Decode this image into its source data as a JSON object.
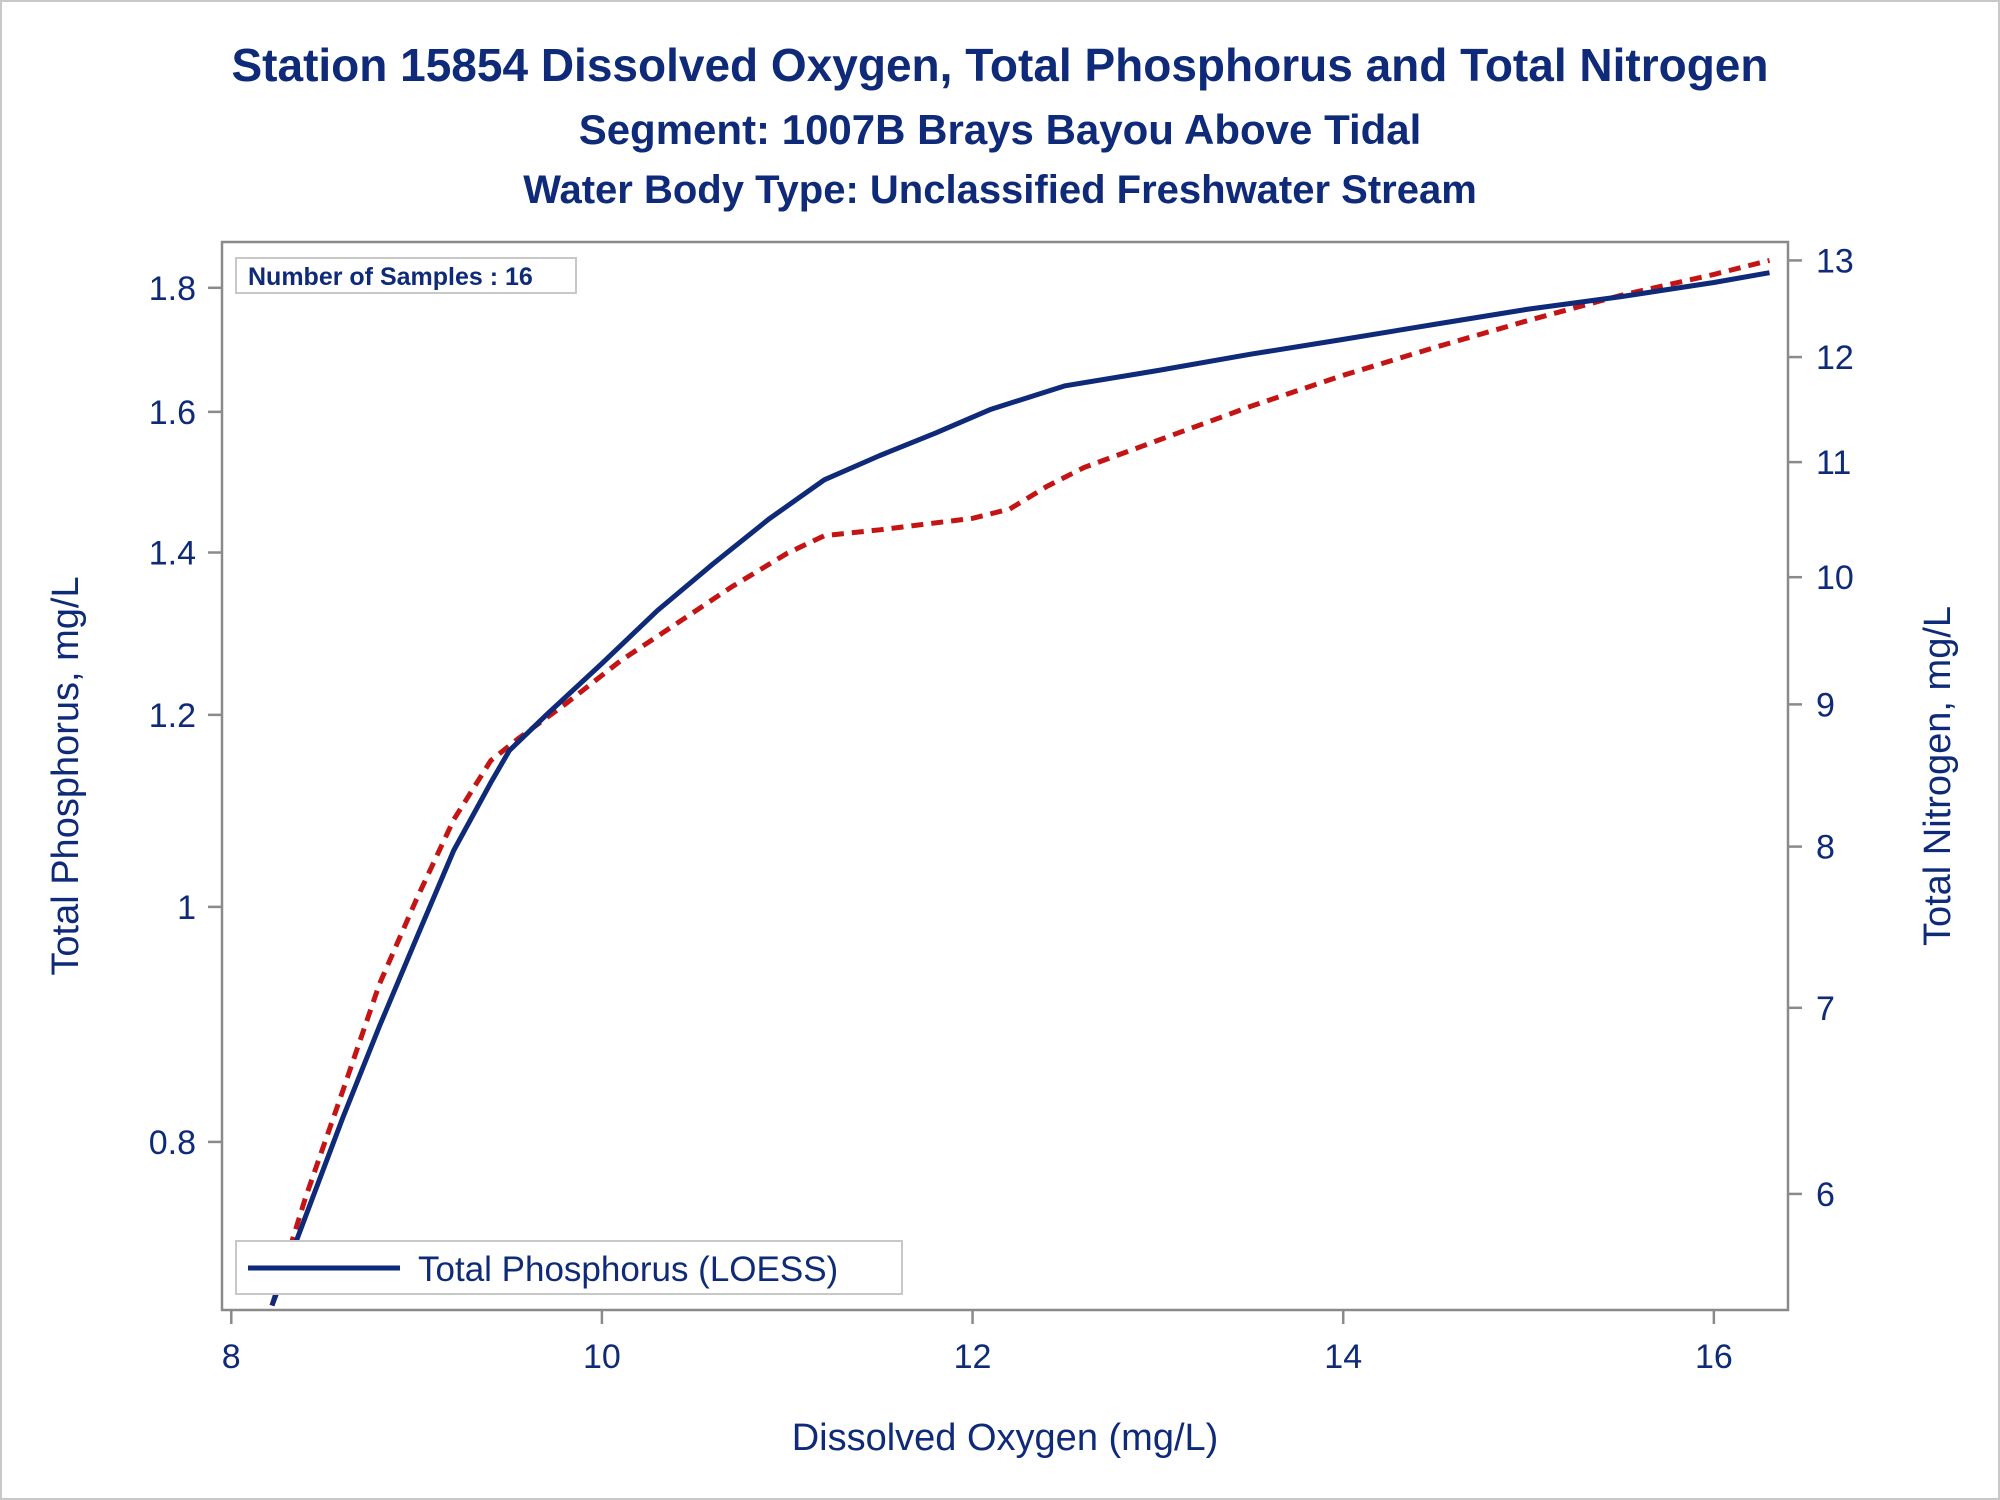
{
  "chart_data": {
    "type": "line",
    "title": "Station 15854  Dissolved Oxygen, Total Phosphorus and Total Nitrogen",
    "subtitle": "Segment: 1007B  Brays Bayou Above Tidal",
    "subtitle2": "Water Body Type: Unclassified Freshwater Stream",
    "xlabel": "Dissolved Oxygen (mg/L)",
    "ylabel": "Total Phosphorus, mg/L",
    "y2label": "Total Nitrogen, mg/L",
    "annotation": "Number of Samples : 16",
    "x_ticks": [
      8,
      10,
      12,
      14,
      16
    ],
    "y_ticks": [
      0.8,
      1,
      1.2,
      1.4,
      1.6,
      1.8
    ],
    "y2_ticks": [
      6,
      7,
      8,
      9,
      10,
      11,
      12,
      13
    ],
    "y_scale": "log",
    "y2_scale": "log",
    "xlim": [
      7.95,
      16.4
    ],
    "ylim": [
      0.682,
      1.88
    ],
    "y2lim": [
      5.45,
      13.2
    ],
    "legend": "bottom-left",
    "series": [
      {
        "name": "Total Phosphorus (LOESS)",
        "axis": "left",
        "color": "#0e2a78",
        "style": "solid",
        "x": [
          8.22,
          8.4,
          8.6,
          8.8,
          9.0,
          9.2,
          9.4,
          9.5,
          9.7,
          10.0,
          10.3,
          10.6,
          10.9,
          11.2,
          11.5,
          11.8,
          12.1,
          12.5,
          13.0,
          13.5,
          14.0,
          14.5,
          15.0,
          15.5,
          16.0,
          16.3
        ],
        "y": [
          0.685,
          0.745,
          0.818,
          0.893,
          0.971,
          1.055,
          1.125,
          1.16,
          1.2,
          1.26,
          1.325,
          1.385,
          1.445,
          1.5,
          1.535,
          1.568,
          1.604,
          1.64,
          1.664,
          1.69,
          1.714,
          1.739,
          1.764,
          1.785,
          1.809,
          1.826
        ]
      },
      {
        "name": "",
        "axis": "right",
        "color": "#c41414",
        "style": "dashed",
        "x": [
          8.22,
          8.4,
          8.6,
          8.8,
          9.0,
          9.2,
          9.4,
          9.55,
          9.8,
          10.1,
          10.4,
          10.7,
          11.0,
          11.2,
          11.5,
          11.8,
          12.0,
          12.2,
          12.4,
          12.6,
          13.0,
          13.5,
          14.0,
          14.5,
          15.0,
          15.5,
          16.0,
          16.3
        ],
        "y": [
          5.47,
          5.98,
          6.53,
          7.14,
          7.66,
          8.18,
          8.59,
          8.75,
          9.0,
          9.33,
          9.62,
          9.92,
          10.2,
          10.35,
          10.4,
          10.46,
          10.5,
          10.58,
          10.78,
          10.95,
          11.2,
          11.52,
          11.82,
          12.1,
          12.37,
          12.63,
          12.85,
          13.0
        ]
      }
    ]
  }
}
